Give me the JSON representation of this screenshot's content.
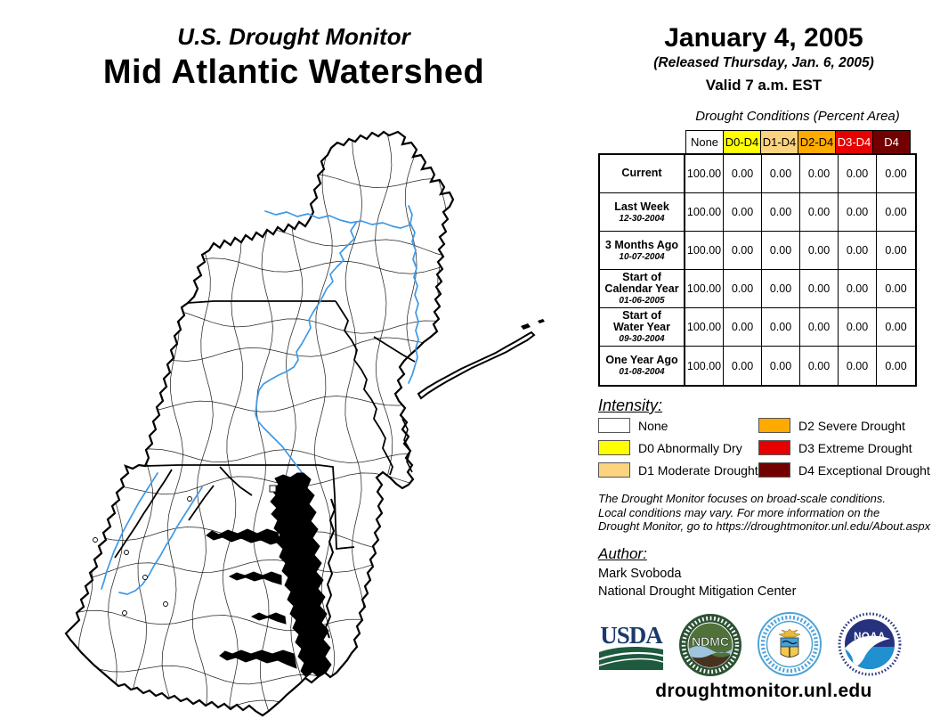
{
  "header": {
    "supertitle": "U.S. Drought Monitor",
    "title": "Mid Atlantic Watershed",
    "date": "January 4, 2005",
    "released": "(Released Thursday, Jan. 6, 2005)",
    "valid": "Valid 7 a.m. EST"
  },
  "table": {
    "caption": "Drought Conditions (Percent Area)",
    "columns": [
      {
        "label": "None",
        "bg": "#FFFFFF",
        "fg": "#000000"
      },
      {
        "label": "D0-D4",
        "bg": "#FFFF00",
        "fg": "#000000"
      },
      {
        "label": "D1-D4",
        "bg": "#FCD37F",
        "fg": "#000000"
      },
      {
        "label": "D2-D4",
        "bg": "#FFAA00",
        "fg": "#000000"
      },
      {
        "label": "D3-D4",
        "bg": "#E60000",
        "fg": "#FFFFFF"
      },
      {
        "label": "D4",
        "bg": "#730000",
        "fg": "#FFFFFF"
      }
    ],
    "rows": [
      {
        "label": "Current",
        "date": "",
        "values": [
          "100.00",
          "0.00",
          "0.00",
          "0.00",
          "0.00",
          "0.00"
        ]
      },
      {
        "label": "Last Week",
        "date": "12-30-2004",
        "values": [
          "100.00",
          "0.00",
          "0.00",
          "0.00",
          "0.00",
          "0.00"
        ]
      },
      {
        "label": "3 Months Ago",
        "date": "10-07-2004",
        "values": [
          "100.00",
          "0.00",
          "0.00",
          "0.00",
          "0.00",
          "0.00"
        ]
      },
      {
        "label": "Start of\nCalendar Year",
        "date": "01-06-2005",
        "values": [
          "100.00",
          "0.00",
          "0.00",
          "0.00",
          "0.00",
          "0.00"
        ]
      },
      {
        "label": "Start of\nWater Year",
        "date": "09-30-2004",
        "values": [
          "100.00",
          "0.00",
          "0.00",
          "0.00",
          "0.00",
          "0.00"
        ]
      },
      {
        "label": "One Year Ago",
        "date": "01-08-2004",
        "values": [
          "100.00",
          "0.00",
          "0.00",
          "0.00",
          "0.00",
          "0.00"
        ]
      }
    ]
  },
  "legend": {
    "heading": "Intensity:",
    "items": [
      {
        "label": "None",
        "color": "#FFFFFF"
      },
      {
        "label": "D0 Abnormally Dry",
        "color": "#FFFF00"
      },
      {
        "label": "D1 Moderate Drought",
        "color": "#FCD37F"
      },
      {
        "label": "D2 Severe Drought",
        "color": "#FFAA00"
      },
      {
        "label": "D3 Extreme Drought",
        "color": "#E60000"
      },
      {
        "label": "D4 Exceptional Drought",
        "color": "#730000"
      }
    ]
  },
  "disclaimer": {
    "lines": [
      "The Drought Monitor focuses on broad-scale conditions.",
      "Local conditions may vary. For more information on the",
      "Drought Monitor, go to https://droughtmonitor.unl.edu/About.aspx"
    ]
  },
  "author": {
    "heading": "Author:",
    "name": "Mark Svoboda",
    "org": "National Drought Mitigation Center"
  },
  "logos": {
    "usda": {
      "text": "USDA"
    },
    "ndmc": {
      "text": "NDMC"
    },
    "noaa": {
      "text": "NOAA"
    }
  },
  "footer": {
    "url": "droughtmonitor.unl.edu"
  },
  "map": {
    "river_color": "#3D99E8"
  }
}
